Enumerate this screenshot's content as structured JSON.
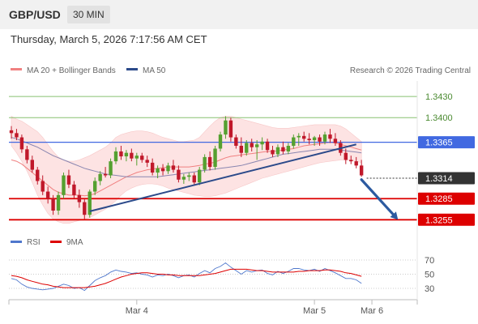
{
  "header": {
    "pair": "GBP/USD",
    "timeframe": "30 MIN",
    "datetime": "Thursday, March 5, 2026 7:17:56 AM CET"
  },
  "legend": {
    "ma20_label": "MA 20 + Bollinger Bands",
    "ma50_label": "MA 50",
    "copyright": "Research © 2026 Trading Central",
    "rsi_label": "RSI",
    "rsi_ma_label": "9MA"
  },
  "colors": {
    "bull": "#55a030",
    "bear": "#c0182a",
    "bollinger_fill": "#fde3e3",
    "ma20": "#f08080",
    "ma50": "#8a86b0",
    "trendline": "#2c4a8a",
    "pivot": "#4169e1",
    "support": "#dd0000",
    "resistance": "#88c070",
    "current": "#333333",
    "arrow": "#2c5aa0",
    "rsi": "#4f77cc",
    "rsi_ma": "#dd0000"
  },
  "chart_data": {
    "type": "candlestick",
    "price_range": [
      1.3245,
      1.3452
    ],
    "levels": [
      {
        "label": "1.3430",
        "value": 1.343,
        "kind": "resistance"
      },
      {
        "label": "1.3400",
        "value": 1.34,
        "kind": "resistance"
      },
      {
        "label": "1.3365",
        "value": 1.3365,
        "kind": "pivot"
      },
      {
        "label": "1.3314",
        "value": 1.3314,
        "kind": "current"
      },
      {
        "label": "1.3285",
        "value": 1.3285,
        "kind": "support"
      },
      {
        "label": "1.3255",
        "value": 1.3255,
        "kind": "support"
      }
    ],
    "candles": [
      [
        1.3382,
        1.3388,
        1.337,
        1.3378
      ],
      [
        1.3378,
        1.3384,
        1.3368,
        1.3372
      ],
      [
        1.3372,
        1.3376,
        1.335,
        1.3355
      ],
      [
        1.3355,
        1.336,
        1.3335,
        1.334
      ],
      [
        1.334,
        1.3346,
        1.3322,
        1.3326
      ],
      [
        1.3326,
        1.333,
        1.3305,
        1.331
      ],
      [
        1.331,
        1.3318,
        1.329,
        1.3295
      ],
      [
        1.3295,
        1.3302,
        1.3278,
        1.3285
      ],
      [
        1.3285,
        1.329,
        1.3262,
        1.3268
      ],
      [
        1.3268,
        1.3295,
        1.3262,
        1.329
      ],
      [
        1.329,
        1.3322,
        1.3285,
        1.3318
      ],
      [
        1.3318,
        1.3326,
        1.33,
        1.3305
      ],
      [
        1.3305,
        1.331,
        1.3285,
        1.329
      ],
      [
        1.329,
        1.3298,
        1.3272,
        1.328
      ],
      [
        1.328,
        1.3284,
        1.3256,
        1.3262
      ],
      [
        1.3262,
        1.3298,
        1.3258,
        1.3295
      ],
      [
        1.3295,
        1.3315,
        1.329,
        1.331
      ],
      [
        1.331,
        1.3324,
        1.3304,
        1.332
      ],
      [
        1.332,
        1.333,
        1.3315,
        1.3318
      ],
      [
        1.3318,
        1.3342,
        1.3314,
        1.3338
      ],
      [
        1.3338,
        1.3358,
        1.3334,
        1.3352
      ],
      [
        1.3352,
        1.336,
        1.334,
        1.3345
      ],
      [
        1.3345,
        1.3354,
        1.3338,
        1.335
      ],
      [
        1.335,
        1.3356,
        1.3338,
        1.3342
      ],
      [
        1.3342,
        1.335,
        1.3332,
        1.3346
      ],
      [
        1.3346,
        1.335,
        1.3336,
        1.334
      ],
      [
        1.334,
        1.3346,
        1.333,
        1.3336
      ],
      [
        1.3336,
        1.3342,
        1.3318,
        1.3322
      ],
      [
        1.3322,
        1.3332,
        1.3314,
        1.3328
      ],
      [
        1.3328,
        1.3334,
        1.3318,
        1.3324
      ],
      [
        1.3324,
        1.3336,
        1.332,
        1.3332
      ],
      [
        1.3332,
        1.334,
        1.3322,
        1.3326
      ],
      [
        1.3326,
        1.3332,
        1.3308,
        1.3312
      ],
      [
        1.3312,
        1.332,
        1.3306,
        1.3316
      ],
      [
        1.3316,
        1.3322,
        1.331,
        1.3318
      ],
      [
        1.3318,
        1.3322,
        1.3305,
        1.3308
      ],
      [
        1.3308,
        1.333,
        1.3304,
        1.3326
      ],
      [
        1.3326,
        1.3348,
        1.3322,
        1.3344
      ],
      [
        1.3344,
        1.3352,
        1.3325,
        1.333
      ],
      [
        1.333,
        1.336,
        1.3326,
        1.3356
      ],
      [
        1.3356,
        1.338,
        1.3352,
        1.3376
      ],
      [
        1.3376,
        1.3402,
        1.337,
        1.3396
      ],
      [
        1.3396,
        1.34,
        1.3366,
        1.3372
      ],
      [
        1.3372,
        1.3376,
        1.3356,
        1.336
      ],
      [
        1.336,
        1.3372,
        1.3344,
        1.335
      ],
      [
        1.335,
        1.3368,
        1.3346,
        1.3364
      ],
      [
        1.3364,
        1.337,
        1.3352,
        1.3358
      ],
      [
        1.3358,
        1.3368,
        1.334,
        1.3362
      ],
      [
        1.3362,
        1.3372,
        1.3354,
        1.3366
      ],
      [
        1.3366,
        1.337,
        1.335,
        1.3354
      ],
      [
        1.3354,
        1.336,
        1.3344,
        1.3348
      ],
      [
        1.3348,
        1.3362,
        1.3344,
        1.3358
      ],
      [
        1.3358,
        1.3366,
        1.3348,
        1.3352
      ],
      [
        1.3352,
        1.3364,
        1.3348,
        1.336
      ],
      [
        1.336,
        1.3376,
        1.3356,
        1.3372
      ],
      [
        1.3372,
        1.3378,
        1.336,
        1.3374
      ],
      [
        1.3374,
        1.338,
        1.3366,
        1.337
      ],
      [
        1.337,
        1.3378,
        1.3362,
        1.3368
      ],
      [
        1.3368,
        1.3374,
        1.336,
        1.3372
      ],
      [
        1.3372,
        1.3376,
        1.336,
        1.3366
      ],
      [
        1.3366,
        1.338,
        1.3362,
        1.3376
      ],
      [
        1.3376,
        1.3384,
        1.3364,
        1.337
      ],
      [
        1.337,
        1.3378,
        1.336,
        1.3364
      ],
      [
        1.3364,
        1.3368,
        1.3346,
        1.335
      ],
      [
        1.335,
        1.3356,
        1.3334,
        1.334
      ],
      [
        1.334,
        1.3346,
        1.3334,
        1.3338
      ],
      [
        1.3338,
        1.3344,
        1.3328,
        1.3332
      ],
      [
        1.3332,
        1.334,
        1.3316,
        1.3318
      ]
    ],
    "ma20": [
      1.334,
      1.3338,
      1.3334,
      1.3328,
      1.3322,
      1.3316,
      1.331,
      1.3304,
      1.3298,
      1.3294,
      1.3292,
      1.329,
      1.329,
      1.329,
      1.3289,
      1.329,
      1.3292,
      1.3296,
      1.33,
      1.3304,
      1.3308,
      1.3312,
      1.3316,
      1.3319,
      1.3322,
      1.3324,
      1.3326,
      1.3327,
      1.3328,
      1.3329,
      1.333,
      1.333,
      1.333,
      1.333,
      1.333,
      1.3331,
      1.3332,
      1.3334,
      1.3335,
      1.3337,
      1.334,
      1.3343,
      1.3345,
      1.3346,
      1.3347,
      1.3348,
      1.3349,
      1.335,
      1.3351,
      1.3352,
      1.3352,
      1.3353,
      1.3354,
      1.3355,
      1.3356,
      1.3358,
      1.336,
      1.3361,
      1.3362,
      1.3363,
      1.3364,
      1.3365,
      1.3364,
      1.3362,
      1.336,
      1.3358,
      1.3356,
      1.3354
    ],
    "bb_upper": [
      1.3402,
      1.3398,
      1.3395,
      1.339,
      1.3385,
      1.338,
      1.3372,
      1.3362,
      1.3352,
      1.3344,
      1.334,
      1.3338,
      1.3338,
      1.334,
      1.3343,
      1.3346,
      1.335,
      1.3354,
      1.3358,
      1.3364,
      1.3372,
      1.3376,
      1.3378,
      1.338,
      1.3381,
      1.3381,
      1.338,
      1.3378,
      1.3375,
      1.3372,
      1.337,
      1.3368,
      1.3366,
      1.3366,
      1.3367,
      1.3368,
      1.3372,
      1.338,
      1.3388,
      1.3395,
      1.34,
      1.3402,
      1.3402,
      1.34,
      1.3398,
      1.3396,
      1.3394,
      1.3392,
      1.339,
      1.3388,
      1.3386,
      1.3385,
      1.3385,
      1.3385,
      1.3386,
      1.3387,
      1.3388,
      1.3389,
      1.339,
      1.339,
      1.339,
      1.339,
      1.339,
      1.3388,
      1.3384,
      1.3378,
      1.3372,
      1.3366
    ],
    "bb_lower": [
      1.336,
      1.335,
      1.3338,
      1.3324,
      1.3308,
      1.329,
      1.3276,
      1.3264,
      1.3256,
      1.3252,
      1.325,
      1.325,
      1.3252,
      1.3254,
      1.3256,
      1.3258,
      1.3262,
      1.3266,
      1.327,
      1.3276,
      1.3282,
      1.329,
      1.3296,
      1.33,
      1.3303,
      1.3305,
      1.3306,
      1.3306,
      1.3305,
      1.3303,
      1.33,
      1.3298,
      1.3296,
      1.3294,
      1.3292,
      1.329,
      1.3289,
      1.3288,
      1.3288,
      1.3289,
      1.3291,
      1.3293,
      1.3296,
      1.3299,
      1.3302,
      1.3305,
      1.3308,
      1.3311,
      1.3314,
      1.3316,
      1.3318,
      1.332,
      1.3322,
      1.3324,
      1.3326,
      1.3328,
      1.333,
      1.3332,
      1.3334,
      1.3336,
      1.3337,
      1.3338,
      1.3339,
      1.334,
      1.334,
      1.3339,
      1.3338,
      1.3336
    ],
    "ma50": [
      1.3372,
      1.337,
      1.3367,
      1.3364,
      1.3361,
      1.3358,
      1.3354,
      1.335,
      1.3346,
      1.3343,
      1.334,
      1.3337,
      1.3334,
      1.3331,
      1.3328,
      1.3326,
      1.3324,
      1.3322,
      1.332,
      1.3319,
      1.3318,
      1.3317,
      1.3316,
      1.3316,
      1.3316,
      1.3316,
      1.3316,
      1.3316,
      1.3316,
      1.3317,
      1.3318,
      1.3319,
      1.332,
      1.3321,
      1.3322,
      1.3323,
      1.3324,
      1.3325,
      1.3326,
      1.3327,
      1.3328,
      1.3329,
      1.333,
      1.3331,
      1.3332,
      1.3334,
      1.3336,
      1.3338,
      1.334,
      1.3342,
      1.3344,
      1.3346,
      1.3348,
      1.3349,
      1.335,
      1.3351,
      1.3352,
      1.3353,
      1.3354,
      1.3355,
      1.3355,
      1.3355,
      1.3355,
      1.3354,
      1.3353,
      1.3352,
      1.3351,
      1.335
    ],
    "trendline": {
      "from": {
        "index": 15,
        "value": 1.3267
      },
      "to": {
        "index": 66,
        "value": 1.3362
      }
    },
    "projection": {
      "from": {
        "index": 67,
        "value": 1.3312
      },
      "to": {
        "index": 74,
        "value": 1.3255
      }
    },
    "x_labels": [
      {
        "label": "Mar 4",
        "index": 24
      },
      {
        "label": "Mar 5",
        "index": 58
      },
      {
        "label": "Mar 6",
        "index": 69
      }
    ],
    "rsi": {
      "ticks": [
        {
          "label": "70",
          "value": 70
        },
        {
          "label": "50",
          "value": 50
        },
        {
          "label": "30",
          "value": 30
        }
      ],
      "values": [
        44,
        42,
        36,
        32,
        30,
        29,
        28,
        29,
        30,
        33,
        36,
        34,
        30,
        31,
        27,
        34,
        41,
        45,
        48,
        53,
        56,
        54,
        53,
        51,
        52,
        50,
        49,
        46,
        49,
        48,
        50,
        48,
        45,
        48,
        49,
        46,
        51,
        55,
        52,
        58,
        61,
        66,
        60,
        55,
        50,
        55,
        53,
        55,
        56,
        51,
        49,
        54,
        51,
        54,
        58,
        58,
        56,
        55,
        57,
        54,
        58,
        55,
        52,
        48,
        44,
        44,
        42,
        37
      ],
      "ma9": [
        48,
        47,
        45,
        42,
        40,
        38,
        36,
        35,
        33,
        32,
        31,
        31,
        31,
        31,
        31,
        32,
        33,
        35,
        37,
        40,
        43,
        46,
        48,
        50,
        51,
        52,
        52,
        51,
        50,
        50,
        49,
        49,
        48,
        48,
        48,
        48,
        48,
        49,
        50,
        51,
        53,
        55,
        57,
        57,
        57,
        57,
        56,
        55,
        55,
        54,
        53,
        53,
        53,
        53,
        53,
        54,
        54,
        55,
        55,
        55,
        56,
        56,
        55,
        54,
        52,
        51,
        49,
        47
      ]
    }
  }
}
